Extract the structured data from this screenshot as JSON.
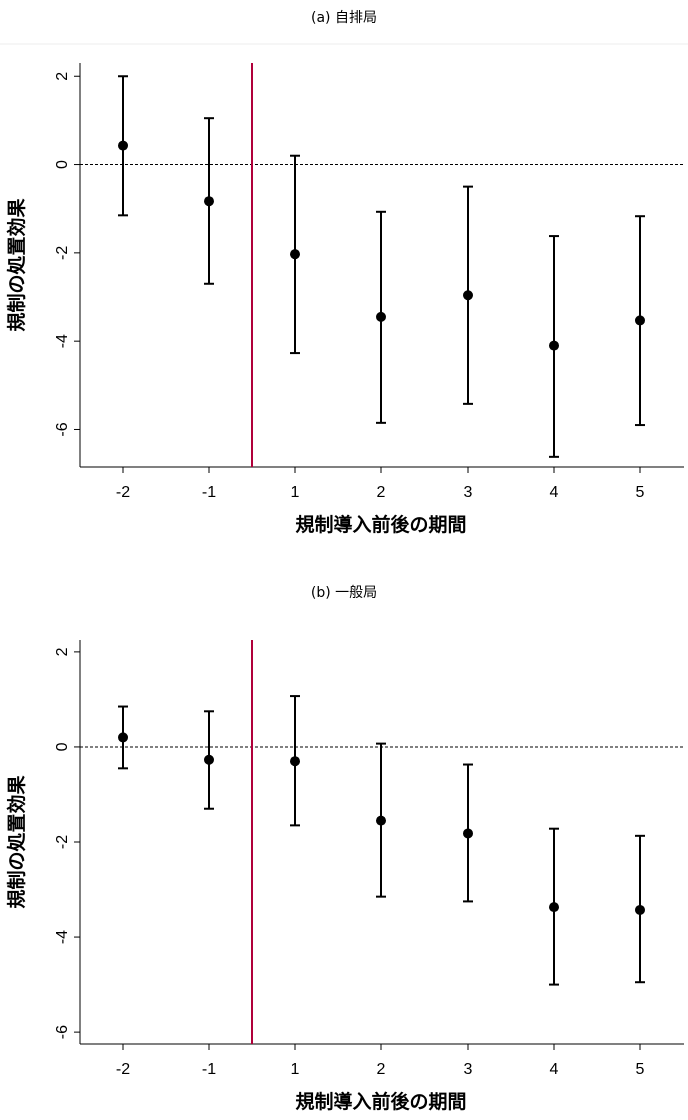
{
  "chart_data": [
    {
      "type": "scatter",
      "style": "point estimates with confidence-interval error bars",
      "title": "(a) 自排局",
      "xlabel": "規制導入前後の期間",
      "ylabel": "規制の処置効果",
      "categories": [
        "-2",
        "-1",
        "1",
        "2",
        "3",
        "4",
        "5"
      ],
      "estimates": [
        0.43,
        -0.83,
        -2.03,
        -3.45,
        -2.96,
        -4.1,
        -3.53
      ],
      "ci_lower": [
        -1.15,
        -2.7,
        -4.27,
        -5.85,
        -5.42,
        -6.62,
        -5.9
      ],
      "ci_upper": [
        2.0,
        1.05,
        0.2,
        -1.07,
        -0.5,
        -1.62,
        -1.17
      ],
      "yticks": [
        "2",
        "0",
        "-2",
        "-4",
        "-6"
      ],
      "ylim": [
        -6.85,
        2.3
      ],
      "reference_line_y": 0,
      "treatment_line_between": [
        "-1",
        "1"
      ],
      "grid": false
    },
    {
      "type": "scatter",
      "style": "point estimates with confidence-interval error bars",
      "title": "(b) 一般局",
      "xlabel": "規制導入前後の期間",
      "ylabel": "規制の処置効果",
      "categories": [
        "-2",
        "-1",
        "1",
        "2",
        "3",
        "4",
        "5"
      ],
      "estimates": [
        0.2,
        -0.27,
        -0.3,
        -1.55,
        -1.82,
        -3.37,
        -3.43
      ],
      "ci_lower": [
        -0.45,
        -1.3,
        -1.65,
        -3.15,
        -3.25,
        -5.0,
        -4.95
      ],
      "ci_upper": [
        0.85,
        0.75,
        1.07,
        0.07,
        -0.37,
        -1.72,
        -1.87
      ],
      "yticks": [
        "2",
        "0",
        "-2",
        "-4",
        "-6"
      ],
      "ylim": [
        -6.25,
        2.25
      ],
      "reference_line_y": 0,
      "treatment_line_between": [
        "-1",
        "1"
      ],
      "grid": false
    }
  ],
  "colors": {
    "points": "#000000",
    "error_bars": "#000000",
    "reference_line": "#000000",
    "treatment_line": "#b0003a",
    "panel_title_bg": "#ffffff",
    "separator": "#eeeeee"
  }
}
